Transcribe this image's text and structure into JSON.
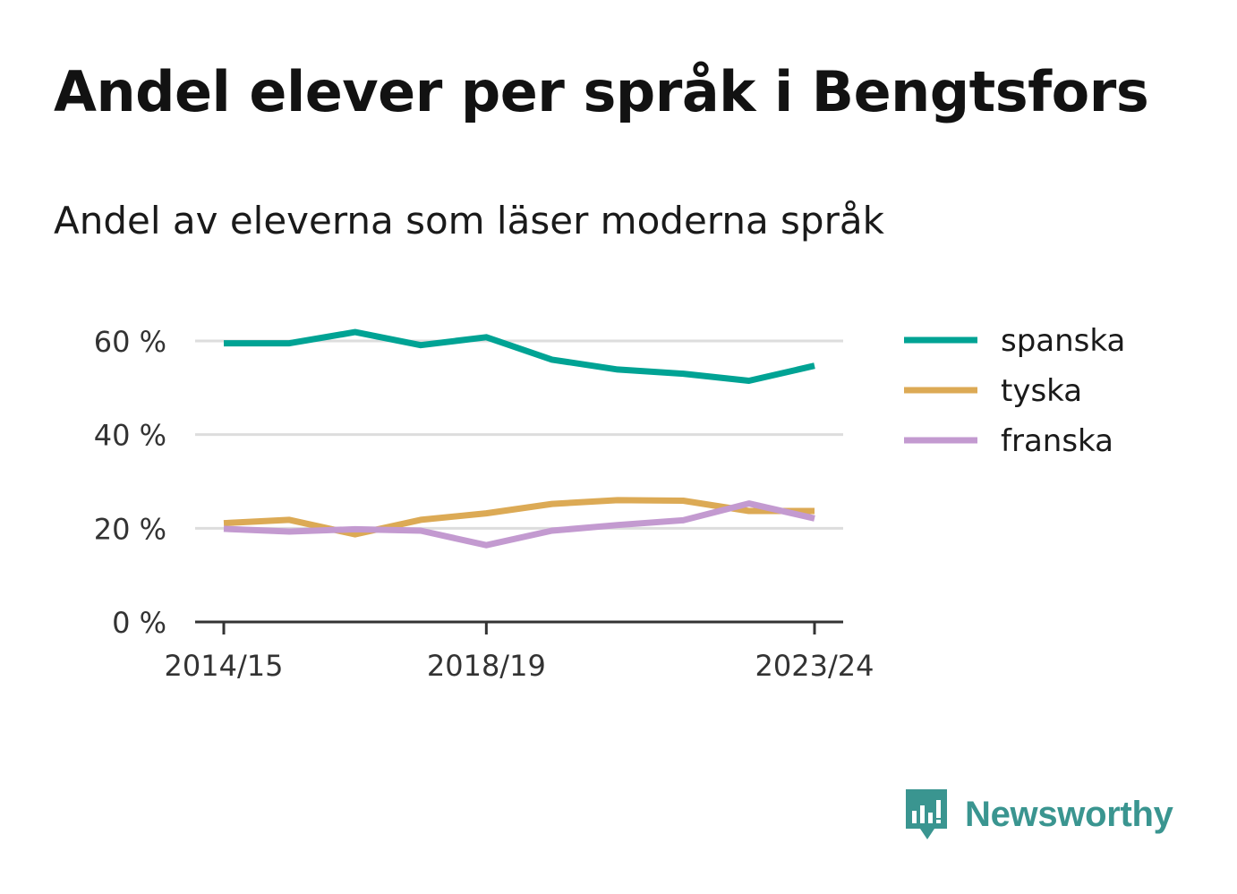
{
  "title": "Andel elever per språk i Bengtsfors",
  "subtitle": "Andel av eleverna som läser moderna språk",
  "brand": "Newsworthy",
  "chart_data": {
    "type": "line",
    "title": "Andel elever per språk i Bengtsfors",
    "subtitle": "Andel av eleverna som läser moderna språk",
    "xlabel": "",
    "ylabel": "",
    "x": [
      "2014/15",
      "2015/16",
      "2016/17",
      "2017/18",
      "2018/19",
      "2019/20",
      "2020/21",
      "2021/22",
      "2022/23",
      "2023/24"
    ],
    "x_ticks": [
      "2014/15",
      "2018/19",
      "2023/24"
    ],
    "ylim": [
      0,
      70
    ],
    "y_ticks": [
      0,
      20,
      40,
      60
    ],
    "y_tick_labels": [
      "0 %",
      "20 %",
      "40 %",
      "60 %"
    ],
    "grid": true,
    "legend_position": "right",
    "series": [
      {
        "name": "spanska",
        "color": "#00a394",
        "values": [
          59.5,
          59.5,
          61.9,
          59.1,
          60.8,
          56.0,
          53.9,
          53.0,
          51.5,
          54.7
        ]
      },
      {
        "name": "tyska",
        "color": "#dcaa55",
        "values": [
          21.1,
          21.8,
          18.7,
          21.8,
          23.2,
          25.2,
          26.0,
          25.9,
          23.7,
          23.7
        ]
      },
      {
        "name": "franska",
        "color": "#c39ad0",
        "values": [
          19.9,
          19.3,
          19.8,
          19.5,
          16.4,
          19.5,
          20.7,
          21.7,
          25.3,
          22.1
        ]
      }
    ]
  }
}
